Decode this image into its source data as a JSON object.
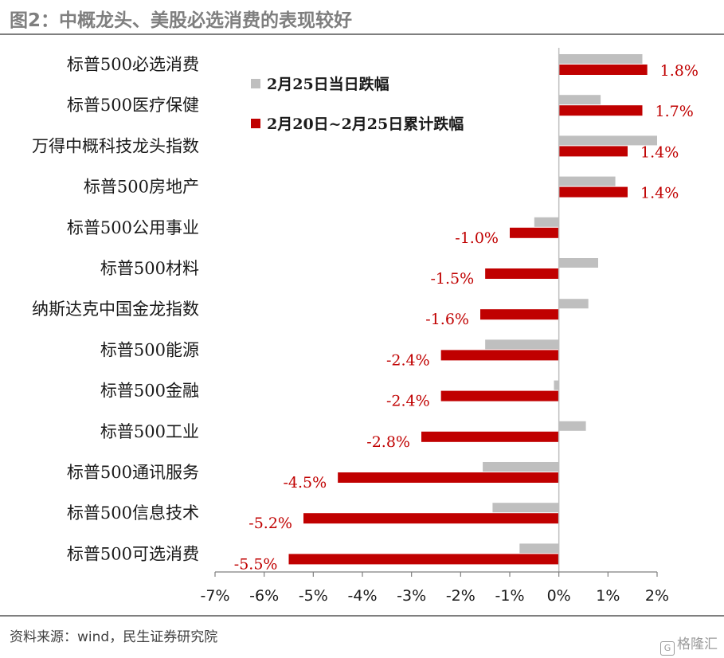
{
  "header": {
    "title": "图2：中概龙头、美股必选消费的表现较好"
  },
  "footer": {
    "source": "资料来源：wind，民生证券研究院",
    "watermark": "格隆汇"
  },
  "chart_data": {
    "type": "bar",
    "orientation": "horizontal",
    "categories": [
      "标普500必选消费",
      "标普500医疗保健",
      "万得中概科技龙头指数",
      "标普500房地产",
      "标普500公用事业",
      "标普500材料",
      "纳斯达克中国金龙指数",
      "标普500能源",
      "标普500金融",
      "标普500工业",
      "标普500通讯服务",
      "标普500信息技术",
      "标普500可选消费"
    ],
    "series": [
      {
        "name": "2月25日当日跌幅",
        "color": "#bfbfbf",
        "values": [
          1.7,
          0.85,
          2.0,
          1.15,
          -0.5,
          0.8,
          0.6,
          -1.5,
          -0.1,
          0.55,
          -1.55,
          -1.35,
          -0.8
        ]
      },
      {
        "name": "2月20日~2月25日累计跌幅",
        "color": "#c00000",
        "values": [
          1.8,
          1.7,
          1.4,
          1.4,
          -1.0,
          -1.5,
          -1.6,
          -2.4,
          -2.4,
          -2.8,
          -4.5,
          -5.2,
          -5.5
        ],
        "labels": [
          "1.8%",
          "1.7%",
          "1.4%",
          "1.4%",
          "-1.0%",
          "-1.5%",
          "-1.6%",
          "-2.4%",
          "-2.4%",
          "-2.8%",
          "-4.5%",
          "-5.2%",
          "-5.5%"
        ]
      }
    ],
    "xlim": [
      -7,
      2
    ],
    "xticks": [
      -7,
      -6,
      -5,
      -4,
      -3,
      -2,
      -1,
      0,
      1,
      2
    ],
    "xtick_labels": [
      "-7%",
      "-6%",
      "-5%",
      "-4%",
      "-3%",
      "-2%",
      "-1%",
      "0%",
      "1%",
      "2%"
    ],
    "legend": "top-left inside plot",
    "grid": false,
    "title": "",
    "xlabel": "",
    "ylabel": ""
  }
}
